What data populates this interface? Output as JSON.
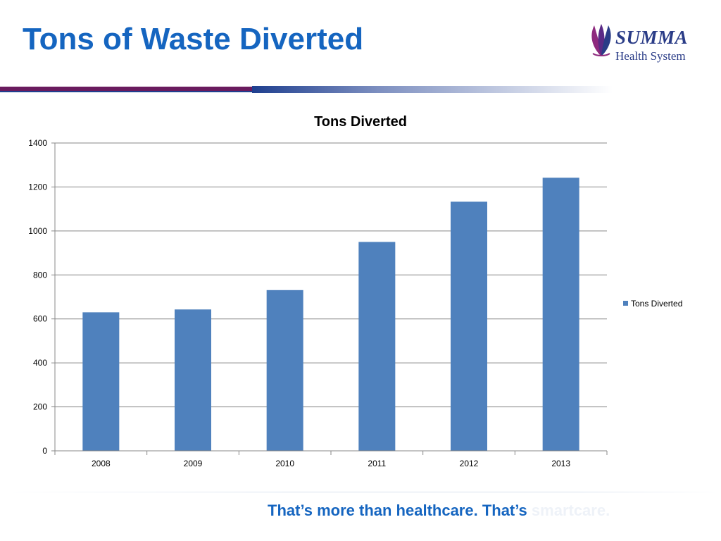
{
  "slide": {
    "title": "Tons of Waste Diverted",
    "logo": {
      "name": "SUMMA",
      "subtitle": "Health System",
      "icon": "summa-leaf-logo-icon"
    },
    "footer": {
      "tagline_main": "That’s more than healthcare. That’s ",
      "tagline_accent": "smartcare."
    }
  },
  "chart_data": {
    "type": "bar",
    "title": "Tons Diverted",
    "categories": [
      "2008",
      "2009",
      "2010",
      "2011",
      "2012",
      "2013"
    ],
    "series": [
      {
        "name": "Tons Diverted",
        "values": [
          630,
          643,
          731,
          950,
          1133,
          1242
        ],
        "color": "#4f81bd"
      }
    ],
    "xlabel": "",
    "ylabel": "",
    "ylim": [
      0,
      1400
    ],
    "yticks": [
      0,
      200,
      400,
      600,
      800,
      1000,
      1200,
      1400
    ],
    "grid": true,
    "legend_position": "right"
  },
  "colors": {
    "title": "#1565c0",
    "bar": "#4f81bd",
    "gridline": "#888888",
    "divider_purple": "#6a1b5e",
    "divider_blue": "#1f3f8f"
  }
}
